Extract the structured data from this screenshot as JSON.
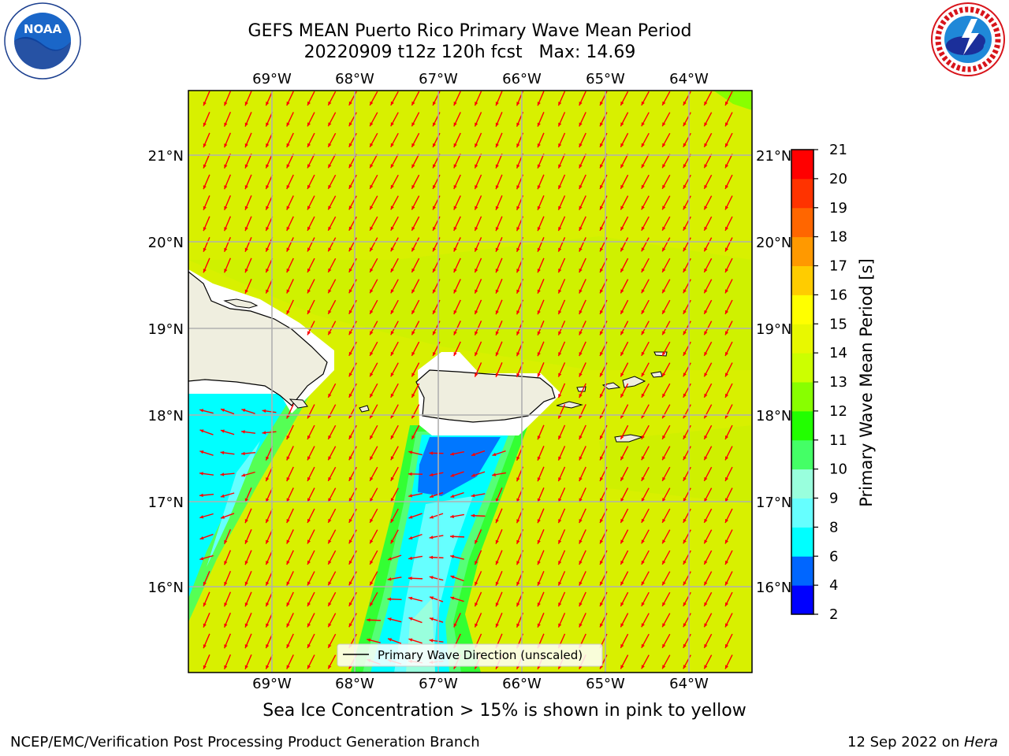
{
  "title_line1": "GEFS MEAN Puerto Rico Primary Wave Mean Period",
  "title_line2": "20220909 t12z 120h fcst   Max: 14.69",
  "map": {
    "lon_labels": [
      "69°W",
      "68°W",
      "67°W",
      "66°W",
      "65°W",
      "64°W"
    ],
    "lat_labels": [
      "21°N",
      "20°N",
      "19°N",
      "18°N",
      "17°N",
      "16°N"
    ],
    "legend_label": "Primary Wave Direction (unscaled)",
    "colors": {
      "ocean_main": "#d8f000",
      "ocean_light": "#b8f200",
      "land": "#efeedf",
      "cyan": "#00ffff",
      "aqua": "#66ffff",
      "mint": "#99ffdd",
      "green_bright": "#33ff33",
      "green": "#55ff55",
      "blue": "#0077ff",
      "arrow": "#ff0000",
      "grid": "#b0b0b0"
    }
  },
  "colorbar": {
    "label": "Primary Wave Mean Period [s]",
    "ticks": [
      "2",
      "4",
      "6",
      "8",
      "9",
      "10",
      "11",
      "12",
      "13",
      "14",
      "15",
      "16",
      "17",
      "18",
      "19",
      "20",
      "21"
    ],
    "colors": [
      "#0000ff",
      "#0066ff",
      "#00ffff",
      "#66ffff",
      "#99ffdd",
      "#44ff66",
      "#22ff00",
      "#88ff00",
      "#ccff00",
      "#e8f800",
      "#ffff00",
      "#ffcc00",
      "#ff9900",
      "#ff6600",
      "#ff3300",
      "#ff0000"
    ]
  },
  "subcaption": "Sea Ice Concentration > 15% is shown in pink to yellow",
  "footer_left": "NCEP/EMC/Verification Post Processing Product Generation Branch",
  "footer_right_prefix": "12 Sep 2022 on ",
  "footer_right_machine": "Hera"
}
